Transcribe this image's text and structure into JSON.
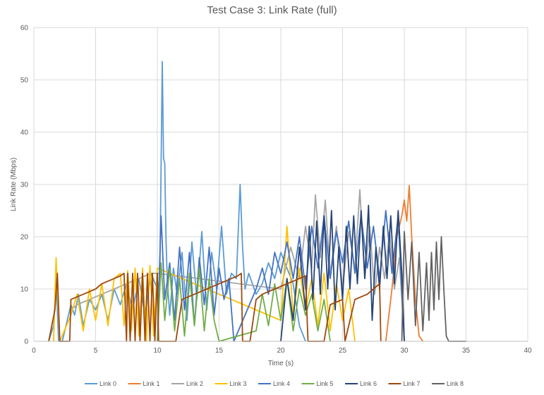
{
  "chart_data": {
    "type": "line",
    "title": "Test Case 3: Link Rate (full)",
    "xlabel": "Time (s)",
    "ylabel": "Link Rate (Mbps)",
    "xlim": [
      0,
      40
    ],
    "ylim": [
      0,
      60
    ],
    "xticks": [
      0,
      5,
      10,
      15,
      20,
      25,
      30,
      35,
      40
    ],
    "yticks": [
      0,
      10,
      20,
      30,
      40,
      50,
      60
    ],
    "grid": true,
    "legend_position": "bottom",
    "series": [
      {
        "name": "Link 0",
        "color": "#5b9bd5",
        "x": [
          1.2,
          1.6,
          1.8,
          2.0,
          2.3,
          3.0,
          3.3,
          3.6,
          4.0,
          4.5,
          5.0,
          5.5,
          6.0,
          6.5,
          7.0,
          7.5,
          8.0,
          8.5,
          9.0,
          9.5,
          10.0,
          10.2,
          10.4,
          10.5,
          10.6,
          10.7,
          10.8,
          11.0,
          11.3,
          11.6,
          12.0,
          12.4,
          12.8,
          13.2,
          13.6,
          14.0,
          14.4,
          14.8,
          15.2,
          15.6,
          16.0,
          16.4,
          16.7,
          16.9,
          17.1,
          17.4,
          18.0,
          18.5,
          19.0,
          19.5,
          20.0,
          20.5,
          21.0,
          21.5,
          22.0
        ],
        "y": [
          0,
          3,
          12,
          0,
          0,
          7,
          5,
          9,
          3,
          8,
          6,
          9,
          4,
          10,
          7,
          11,
          6,
          12,
          5,
          13,
          10,
          12,
          53.5,
          35,
          34,
          20,
          12,
          5,
          14,
          9,
          17,
          4,
          19,
          8,
          21,
          6,
          17,
          10,
          22,
          9,
          13,
          12,
          30,
          18,
          10,
          13,
          9,
          11,
          15,
          12,
          17,
          14,
          11,
          3,
          0
        ]
      },
      {
        "name": "Link 1",
        "color": "#ed7d31",
        "x": [
          28.5,
          29.0,
          29.4,
          29.8,
          30.0,
          30.2,
          30.4,
          30.6,
          30.9,
          31.2,
          31.5
        ],
        "y": [
          0,
          10,
          20,
          24,
          27,
          23,
          29.8,
          20,
          8,
          1,
          0
        ]
      },
      {
        "name": "Link 2",
        "color": "#a5a5a5",
        "x": [
          3.0,
          3.5,
          4.0,
          4.5,
          5.0,
          5.5,
          6.0,
          6.5,
          7.0,
          7.5,
          8.0,
          8.5,
          9.0,
          9.5,
          10.0,
          20.0,
          20.8,
          21.5,
          22.0,
          22.5,
          22.8,
          23.2,
          23.6,
          24.0,
          24.5,
          25.0,
          25.5,
          26.0,
          26.4,
          26.8,
          27.2,
          27.6,
          28.0,
          28.4,
          28.8,
          29.2,
          29.6,
          30.0
        ],
        "y": [
          6,
          7,
          7.5,
          8,
          8.5,
          9,
          9.5,
          10,
          10.5,
          11,
          11.5,
          12,
          12.5,
          13,
          13,
          10,
          18,
          12,
          22,
          14,
          28,
          16,
          27,
          13,
          22,
          10,
          21,
          14,
          29,
          12,
          22,
          9,
          18,
          12,
          21,
          10,
          16,
          0
        ]
      },
      {
        "name": "Link 3",
        "color": "#ffc000",
        "x": [
          1.6,
          1.8,
          1.9,
          2.1,
          3.0,
          3.5,
          4.0,
          4.5,
          5.0,
          5.5,
          6.0,
          6.5,
          7.0,
          7.3,
          7.6,
          7.9,
          8.2,
          8.5,
          8.8,
          9.1,
          9.4,
          9.7,
          10.0,
          20.0,
          20.5,
          21.0,
          21.5,
          22.0,
          22.5,
          23.0,
          23.5,
          24.0,
          24.5,
          25.0,
          25.5,
          26.0
        ],
        "y": [
          0,
          16,
          10,
          0,
          5,
          9,
          2,
          10,
          4,
          11,
          3,
          12,
          13,
          3,
          13.5,
          2,
          14,
          1,
          14,
          0,
          14.5,
          1,
          14,
          4,
          22,
          5,
          14,
          6,
          12,
          3,
          13,
          2,
          11,
          4,
          10,
          0
        ]
      },
      {
        "name": "Link 4",
        "color": "#4472c4",
        "x": [
          10.0,
          10.3,
          10.6,
          11.0,
          11.4,
          11.8,
          12.2,
          12.6,
          13.0,
          13.4,
          13.8,
          14.2,
          14.6,
          15.0,
          15.4,
          15.8,
          16.2,
          18.0,
          18.5,
          19.0,
          19.5,
          20.0,
          20.5,
          21.0,
          21.5,
          22.0,
          22.5,
          23.0,
          23.5,
          24.0,
          24.5,
          25.0,
          25.5,
          26.0,
          26.5,
          27.0,
          27.5,
          28.0,
          28.5,
          29.0,
          29.5,
          30.0
        ],
        "y": [
          0,
          24,
          8,
          15,
          4,
          18,
          6,
          17,
          3,
          16,
          7,
          18,
          5,
          14,
          8,
          12,
          0,
          10,
          14,
          9,
          17,
          13,
          19,
          12,
          20,
          10,
          22,
          14,
          24,
          12,
          21,
          15,
          23,
          13,
          24,
          14,
          22,
          12,
          25,
          13,
          24,
          0
        ]
      },
      {
        "name": "Link 5",
        "color": "#70ad47",
        "x": [
          10.0,
          10.3,
          10.6,
          11.0,
          11.4,
          11.8,
          12.2,
          12.6,
          13.0,
          13.4,
          13.8,
          14.2,
          14.6,
          15.0,
          18.0,
          18.5,
          19.0,
          19.5,
          20.0,
          20.5,
          21.0,
          21.5,
          22.0,
          22.5,
          23.0,
          23.5,
          24.0
        ],
        "y": [
          0,
          15,
          4,
          14,
          2,
          12,
          1,
          13,
          3,
          14,
          2,
          12,
          4,
          0,
          2,
          9,
          3,
          11,
          4,
          12,
          2,
          10,
          5,
          9,
          2,
          8,
          0
        ]
      },
      {
        "name": "Link 6",
        "color": "#264478",
        "x": [
          20.0,
          20.5,
          21.0,
          21.5,
          22.0,
          22.3,
          22.6,
          22.9,
          23.2,
          23.5,
          23.8,
          24.1,
          24.4,
          24.7,
          25.0,
          25.3,
          25.6,
          25.9,
          26.2,
          26.5,
          26.8,
          27.1,
          27.4,
          27.7,
          28.0,
          28.3,
          28.6,
          28.9,
          29.2,
          29.5,
          29.8,
          30.0
        ],
        "y": [
          0,
          12,
          4,
          18,
          6,
          22,
          8,
          23,
          9,
          24,
          10,
          25,
          6,
          18,
          8,
          22,
          10,
          24,
          11,
          25,
          12,
          26,
          4,
          18,
          10,
          22,
          12,
          24,
          11,
          25,
          13,
          0
        ]
      },
      {
        "name": "Link 7",
        "color": "#9e480e",
        "x": [
          1.2,
          1.7,
          1.9,
          2.1,
          2.9,
          3.0,
          3.5,
          4.0,
          4.5,
          5.0,
          5.5,
          6.0,
          6.5,
          7.0,
          7.3,
          7.5,
          7.6,
          7.8,
          8.0,
          8.2,
          8.4,
          8.6,
          8.8,
          9.0,
          9.2,
          9.4,
          9.6,
          9.8,
          10.0,
          10.1,
          11.5,
          12.0,
          12.5,
          13.0,
          13.5,
          14.0,
          14.5,
          15.0,
          15.5,
          16.0,
          16.5,
          16.8,
          16.9,
          17.5,
          18.0,
          18.5,
          19.0,
          19.5,
          20.0,
          20.5,
          21.0,
          21.5,
          22.0,
          22.2,
          23.5,
          24.0,
          24.5,
          25.0,
          25.2,
          26.0,
          26.5,
          27.0,
          27.5,
          28.0,
          28.1
        ],
        "y": [
          0,
          6,
          13,
          0,
          0,
          8,
          8.5,
          9,
          9.5,
          10,
          11,
          11.5,
          12,
          12.5,
          13,
          0,
          13,
          0,
          13,
          0,
          13,
          0,
          13,
          0,
          13,
          0,
          13,
          0,
          13,
          0,
          0,
          8,
          8.5,
          9,
          9.5,
          10,
          10.5,
          11,
          11.5,
          12,
          12.5,
          13,
          0,
          0,
          8,
          9,
          9.5,
          10,
          10.5,
          11,
          11.5,
          12,
          12.5,
          0,
          0,
          7,
          7.5,
          8,
          0,
          8,
          8.5,
          9,
          10,
          11,
          0
        ]
      },
      {
        "name": "Link 8",
        "color": "#636363",
        "x": [
          29.8,
          30.0,
          30.3,
          30.6,
          30.9,
          31.2,
          31.5,
          31.8,
          32.0,
          32.2,
          32.4,
          32.6,
          32.8,
          33.0,
          33.2,
          33.4,
          33.6,
          35.0
        ],
        "y": [
          0,
          21,
          8,
          19,
          3,
          17,
          2,
          15,
          4,
          17,
          6,
          19,
          8,
          20,
          10,
          1,
          0,
          0
        ]
      }
    ]
  }
}
